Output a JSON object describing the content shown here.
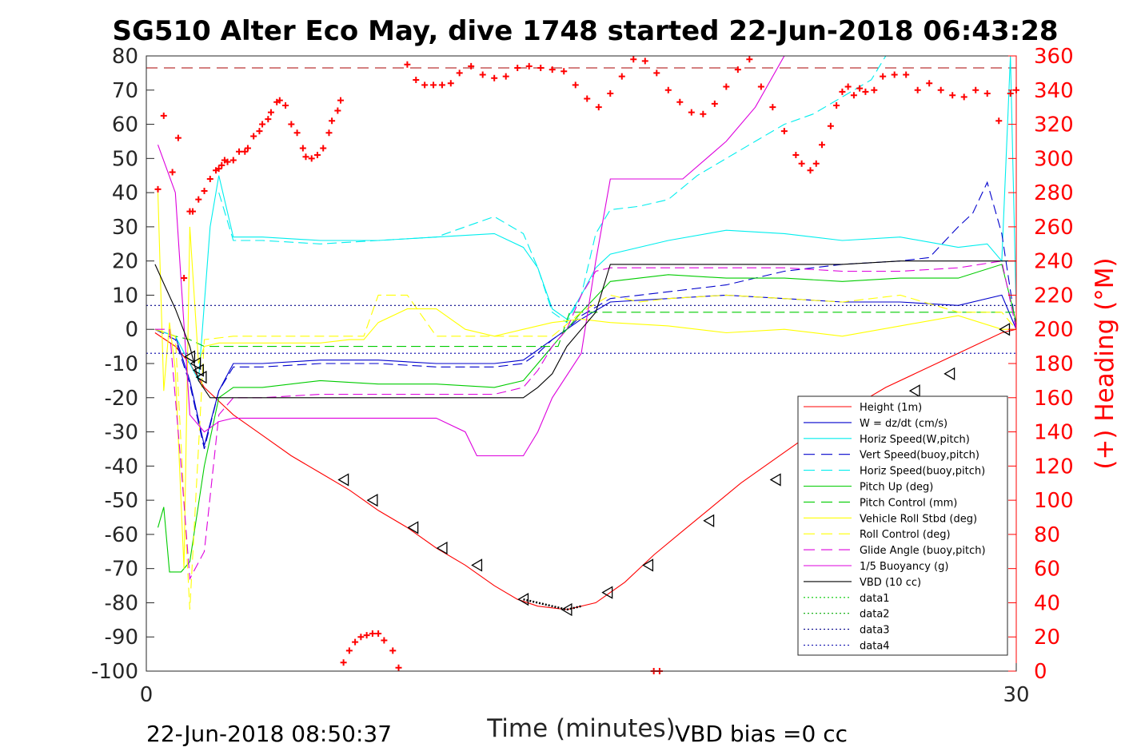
{
  "chart_data": {
    "type": "line",
    "title": "SG510 Alter Eco May, dive 1748 started 22-Jun-2018 06:43:28",
    "xlabel": "Time (minutes)",
    "ylabel": "",
    "ylabel_right": "(+) Heading (°M)",
    "xlim": [
      0,
      30
    ],
    "ylim": [
      -100,
      80
    ],
    "ylim_right": [
      0,
      360
    ],
    "x_ticks": [
      "0",
      "30"
    ],
    "y_ticks": [
      "80",
      "70",
      "60",
      "50",
      "40",
      "30",
      "20",
      "10",
      "0",
      "-10",
      "-20",
      "-30",
      "-40",
      "-50",
      "-60",
      "-70",
      "-80",
      "-90",
      "-100"
    ],
    "y_ticks_right": [
      "360",
      "340",
      "320",
      "300",
      "280",
      "260",
      "240",
      "220",
      "200",
      "180",
      "160",
      "140",
      "120",
      "100",
      "80",
      "60",
      "40",
      "20",
      "0"
    ],
    "right_axis_color": "#ff0000",
    "legend_position": "lower-right",
    "footer_left": "22-Jun-2018 08:50:37",
    "footer_right": "VBD bias =0 cc",
    "series": [
      {
        "name": "Height (1m)",
        "color": "#ff0000",
        "style": "solid",
        "x": [
          0.3,
          1.0,
          1.5,
          2.0,
          3.0,
          4.0,
          5.0,
          6.0,
          7.0,
          8.0,
          9.0,
          10.0,
          11.0,
          12.0,
          12.8,
          13.5,
          14.5,
          15.5,
          16.5,
          17.5,
          18.5,
          19.5,
          20.5,
          21.5,
          22.5,
          23.5,
          24.5,
          25.5,
          26.5,
          27.5,
          28.5,
          29.5,
          30.0
        ],
        "y": [
          -1,
          -5,
          -10,
          -17,
          -25,
          -31,
          -37,
          -42,
          -47,
          -53,
          -58,
          -64,
          -69,
          -75,
          -79,
          -81,
          -82,
          -80,
          -74,
          -66,
          -59,
          -52,
          -45,
          -39,
          -33,
          -27,
          -22,
          -17,
          -13,
          -9,
          -5,
          -1,
          0
        ]
      },
      {
        "name": "W = dz/dt (cm/s)",
        "color": "#0000cc",
        "style": "solid",
        "x": [
          0.3,
          1.0,
          1.5,
          2.0,
          2.5,
          3.0,
          4.0,
          6.0,
          8.0,
          10.0,
          12.0,
          13.0,
          13.5,
          14.0,
          14.5,
          15.0,
          16.0,
          18.0,
          20.0,
          22.0,
          24.0,
          26.0,
          28.0,
          29.5,
          30.0
        ],
        "y": [
          0,
          -2,
          -15,
          -34,
          -18,
          -10,
          -10,
          -9,
          -9,
          -10,
          -10,
          -9,
          -6,
          -3,
          0,
          3,
          8,
          9,
          10,
          9,
          8,
          8,
          7,
          10,
          0
        ]
      },
      {
        "name": "Horiz Speed(W,pitch)",
        "color": "#00eeee",
        "style": "solid",
        "x": [
          0.3,
          1.0,
          1.5,
          1.8,
          2.2,
          2.5,
          3.0,
          4.0,
          6.0,
          8.0,
          10.0,
          12.0,
          13.0,
          13.5,
          14.0,
          14.5,
          15.0,
          15.5,
          16.0,
          18.0,
          20.0,
          22.0,
          24.0,
          26.0,
          28.0,
          29.0,
          29.5,
          29.8,
          30.0
        ],
        "y": [
          0,
          -2,
          -10,
          -15,
          30,
          45,
          27,
          27,
          26,
          26,
          27,
          28,
          24,
          18,
          6,
          3,
          10,
          18,
          22,
          26,
          29,
          28,
          26,
          27,
          24,
          25,
          20,
          80,
          5
        ]
      },
      {
        "name": "Vert Speed(buoy,pitch)",
        "color": "#0000cc",
        "style": "dashed",
        "x": [
          0.3,
          1.0,
          1.5,
          2.0,
          2.5,
          3.0,
          4.0,
          6.0,
          8.0,
          10.0,
          12.0,
          13.0,
          13.5,
          14.0,
          14.5,
          15.0,
          16.0,
          18.0,
          20.0,
          22.0,
          24.0,
          26.0,
          27.0,
          28.0,
          28.5,
          29.0,
          29.5,
          30.0
        ],
        "y": [
          0,
          -3,
          -16,
          -35,
          -18,
          -11,
          -11,
          -10,
          -10,
          -11,
          -11,
          -10,
          -7,
          -3,
          0,
          4,
          9,
          11,
          13,
          17,
          19,
          20,
          21,
          30,
          34,
          43,
          28,
          0
        ]
      },
      {
        "name": "Horiz Speed(buoy,pitch)",
        "color": "#00eeee",
        "style": "dashed",
        "x": [
          2.5,
          3.0,
          4.0,
          6.0,
          8.0,
          10.0,
          11.0,
          12.0,
          13.0,
          13.5,
          14.0,
          14.5,
          15.0,
          15.5,
          16.0,
          17.0,
          18.0,
          19.0,
          20.0,
          21.0,
          22.0,
          23.0,
          24.0,
          25.0,
          25.5
        ],
        "y": [
          40,
          26,
          26,
          25,
          26,
          27,
          30,
          33,
          28,
          18,
          5,
          2,
          10,
          28,
          35,
          36,
          38,
          45,
          50,
          55,
          60,
          63,
          68,
          73,
          80
        ]
      },
      {
        "name": "Pitch Up (deg)",
        "color": "#00cc00",
        "style": "solid",
        "x": [
          0.4,
          0.6,
          0.8,
          1.2,
          1.5,
          2.0,
          2.5,
          3.0,
          4.0,
          6.0,
          8.0,
          10.0,
          12.0,
          13.0,
          13.5,
          14.0,
          14.5,
          15.0,
          16.0,
          18.0,
          20.0,
          22.0,
          24.0,
          26.0,
          28.0,
          29.5,
          30.0
        ],
        "y": [
          -58,
          -52,
          -71,
          -71,
          -68,
          -40,
          -20,
          -17,
          -17,
          -15,
          -16,
          -16,
          -17,
          -15,
          -10,
          -5,
          0,
          5,
          14,
          16,
          15,
          15,
          14,
          15,
          15,
          19,
          2
        ]
      },
      {
        "name": "Pitch Control (mm)",
        "color": "#00cc00",
        "style": "dashed",
        "x": [
          0.3,
          1.0,
          1.5,
          2.0,
          2.5,
          3.0,
          4.0,
          6.0,
          8.0,
          10.0,
          12.0,
          13.0,
          14.0,
          14.2,
          14.6,
          15.0,
          16.0,
          18.0,
          20.0,
          22.0,
          24.0,
          26.0,
          28.0,
          29.5,
          30.0
        ],
        "y": [
          0,
          -2,
          -3,
          -5,
          -5,
          -5,
          -5,
          -5,
          -5,
          -5,
          -5,
          -5,
          -5,
          -5,
          5,
          5,
          5,
          5,
          5,
          5,
          5,
          5,
          5,
          5,
          5
        ]
      },
      {
        "name": "Vehicle Roll Stbd (deg)",
        "color": "#ffff00",
        "style": "solid",
        "x": [
          0.4,
          0.6,
          0.8,
          1.0,
          1.3,
          1.5,
          1.8,
          2.0,
          2.5,
          3.0,
          4.0,
          6.0,
          7.0,
          7.5,
          8.0,
          9.0,
          10.0,
          11.0,
          12.0,
          13.0,
          14.0,
          15.0,
          16.0,
          18.0,
          20.0,
          22.0,
          24.0,
          26.0,
          28.0,
          29.5,
          30.0
        ],
        "y": [
          40,
          -18,
          2,
          -12,
          -70,
          30,
          -10,
          -5,
          -4,
          -4,
          -4,
          -4,
          -3,
          -3,
          2,
          6,
          6,
          0,
          -2,
          0,
          2,
          3,
          2,
          1,
          -1,
          0,
          -2,
          1,
          4,
          0,
          0
        ]
      },
      {
        "name": "Roll Control (deg)",
        "color": "#ffff00",
        "style": "dashed",
        "x": [
          0.3,
          1.0,
          1.5,
          2.0,
          3.0,
          6.0,
          7.0,
          7.5,
          8.0,
          9.0,
          10.0,
          11.0,
          12.0,
          13.0,
          14.0,
          15.0,
          16.0,
          17.0,
          18.0,
          20.0,
          22.0,
          24.0,
          26.0,
          28.0,
          29.5,
          30.0
        ],
        "y": [
          0,
          -2,
          -82,
          -3,
          -2,
          -2,
          -2,
          -2,
          10,
          10,
          -2,
          -2,
          -2,
          -2,
          -2,
          5,
          10,
          8,
          9,
          10,
          9,
          8,
          10,
          5,
          5,
          0
        ]
      },
      {
        "name": "Glide Angle (buoy,pitch)",
        "color": "#dd00dd",
        "style": "dashed",
        "x": [
          0.3,
          0.8,
          1.2,
          1.5,
          2.0,
          2.5,
          3.0,
          4.0,
          6.0,
          8.0,
          10.0,
          12.0,
          13.0,
          13.5,
          14.0,
          14.5,
          15.0,
          15.5,
          16.0,
          18.0,
          20.0,
          22.0,
          24.0,
          26.0,
          28.0,
          29.5,
          30.0
        ],
        "y": [
          0,
          0,
          -40,
          -73,
          -65,
          -25,
          -20,
          -20,
          -19,
          -19,
          -19,
          -19,
          -17,
          -12,
          -5,
          0,
          10,
          17,
          18,
          18,
          18,
          18,
          17,
          17,
          18,
          20,
          0
        ]
      },
      {
        "name": "1/5 Buoyancy (g)",
        "color": "#dd00dd",
        "style": "solid",
        "x": [
          0.4,
          1.0,
          1.5,
          2.0,
          2.5,
          3.0,
          4.0,
          6.0,
          8.0,
          10.0,
          11.0,
          11.4,
          12.0,
          13.0,
          13.5,
          14.0,
          15.0,
          15.5,
          16.0,
          17.0,
          17.5,
          18.5,
          20.0,
          21.0,
          22.0
        ],
        "y": [
          54,
          40,
          -25,
          -30,
          -27,
          -26,
          -26,
          -26,
          -26,
          -26,
          -30,
          -37,
          -37,
          -37,
          -30,
          -20,
          -7,
          20,
          44,
          44,
          44,
          44,
          55,
          65,
          80
        ]
      },
      {
        "name": "VBD (10 cc)",
        "color": "#000000",
        "style": "solid",
        "x": [
          0.3,
          1.0,
          1.5,
          1.8,
          2.2,
          3.0,
          6.0,
          8.0,
          10.0,
          12.0,
          13.0,
          13.5,
          14.0,
          14.5,
          15.0,
          15.5,
          16.0,
          18.0,
          20.0,
          22.0,
          24.0,
          26.0,
          28.0,
          29.5,
          30.0
        ],
        "y": [
          19,
          6,
          -5,
          -15,
          -20,
          -20,
          -20,
          -20,
          -20,
          -20,
          -20,
          -17,
          -13,
          -5,
          0,
          5,
          19,
          19,
          19,
          19,
          19,
          20,
          20,
          20,
          20
        ]
      },
      {
        "name": "data1",
        "color": "#00cc00",
        "style": "dotted",
        "x": [
          0,
          30
        ],
        "y": [
          80,
          80
        ]
      },
      {
        "name": "data2",
        "color": "#00aa00",
        "style": "dotted",
        "x": [
          0,
          30
        ],
        "y": [
          80,
          80
        ]
      },
      {
        "name": "data3",
        "color": "#000088",
        "style": "dotted",
        "x": [
          0,
          30
        ],
        "y": [
          7,
          7
        ]
      },
      {
        "name": "data4",
        "color": "#0000aa",
        "style": "dotted",
        "x": [
          0,
          30
        ],
        "y": [
          -7,
          -7
        ]
      }
    ],
    "reference_line": {
      "color": "#aa0000",
      "style": "dashed",
      "y": 76.5
    },
    "extra_lines": [
      {
        "color": "#000000",
        "style": "dotted",
        "x": [
          13.0,
          13.5,
          14.0,
          14.5,
          15.0
        ],
        "y": [
          -79,
          -80,
          -81,
          -82,
          -81
        ]
      }
    ],
    "markers_triangle": {
      "color": "#000000",
      "points": [
        [
          1.5,
          -8
        ],
        [
          1.7,
          -10
        ],
        [
          1.8,
          -12
        ],
        [
          1.9,
          -14
        ],
        [
          6.8,
          -44
        ],
        [
          7.8,
          -50
        ],
        [
          9.2,
          -58
        ],
        [
          10.2,
          -64
        ],
        [
          11.4,
          -69
        ],
        [
          13.0,
          -79
        ],
        [
          14.5,
          -82
        ],
        [
          15.9,
          -77
        ],
        [
          17.3,
          -69
        ],
        [
          19.4,
          -56
        ],
        [
          21.7,
          -44
        ],
        [
          26.5,
          -18
        ],
        [
          27.7,
          -13
        ],
        [
          29.6,
          0
        ]
      ]
    },
    "heading_points": {
      "color": "#ff0000",
      "axis": "right",
      "x": [
        0.4,
        0.6,
        0.9,
        1.1,
        1.3,
        1.5,
        1.6,
        1.8,
        2.0,
        2.2,
        2.4,
        2.5,
        2.6,
        2.7,
        2.8,
        3.0,
        3.2,
        3.4,
        3.5,
        3.7,
        3.9,
        4.0,
        4.2,
        4.3,
        4.5,
        4.6,
        4.8,
        5.0,
        5.2,
        5.4,
        5.5,
        5.7,
        5.9,
        6.1,
        6.3,
        6.4,
        6.6,
        6.7,
        9.0,
        9.3,
        9.6,
        9.9,
        10.2,
        10.5,
        10.8,
        11.2,
        11.6,
        12.0,
        12.4,
        12.8,
        13.2,
        13.6,
        14.0,
        14.4,
        14.8,
        15.2,
        15.6,
        16.0,
        16.4,
        16.8,
        17.2,
        17.6,
        18.0,
        18.4,
        18.8,
        19.2,
        19.6,
        20.0,
        20.4,
        20.8,
        21.2,
        21.6,
        22.0,
        22.4,
        22.6,
        22.9,
        23.1,
        23.3,
        23.6,
        23.8,
        24.0,
        24.2,
        24.4,
        24.6,
        24.8,
        25.1,
        25.4,
        25.8,
        26.2,
        26.6,
        27.0,
        27.4,
        27.8,
        28.2,
        28.6,
        29.0,
        29.4,
        29.8,
        30.0,
        6.8,
        7.0,
        7.2,
        7.4,
        7.6,
        7.8,
        8.0,
        8.2,
        8.5,
        8.7,
        17.5,
        17.7
      ],
      "y": [
        282,
        325,
        292,
        312,
        230,
        269,
        269,
        276,
        281,
        288,
        293,
        294,
        296,
        299,
        298,
        299,
        304,
        304,
        306,
        313,
        316,
        320,
        323,
        327,
        333,
        334,
        331,
        320,
        315,
        306,
        301,
        300,
        302,
        306,
        315,
        322,
        328,
        334,
        355,
        346,
        343,
        343,
        343,
        344,
        350,
        354,
        349,
        347,
        348,
        353,
        354,
        353,
        352,
        351,
        343,
        335,
        330,
        338,
        348,
        358,
        357,
        350,
        340,
        333,
        327,
        326,
        332,
        342,
        352,
        358,
        342,
        330,
        316,
        302,
        297,
        293,
        297,
        308,
        319,
        331,
        339,
        342,
        337,
        341,
        339,
        340,
        348,
        349,
        349,
        340,
        344,
        340,
        337,
        336,
        340,
        338,
        322,
        338,
        340,
        5,
        12,
        17,
        20,
        21,
        22,
        22,
        18,
        12,
        2,
        0,
        0
      ]
    }
  }
}
